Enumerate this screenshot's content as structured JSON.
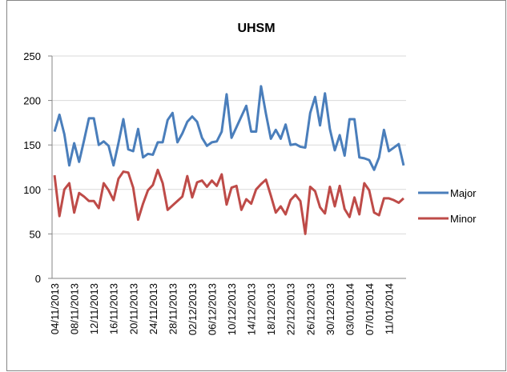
{
  "chart_data": {
    "type": "line",
    "title": "UHSM",
    "categories": [
      "04/11/2013",
      null,
      null,
      null,
      "08/11/2013",
      null,
      null,
      null,
      "12/11/2013",
      null,
      null,
      null,
      "16/11/2013",
      null,
      null,
      null,
      "20/11/2013",
      null,
      null,
      null,
      "24/11/2013",
      null,
      null,
      null,
      "28/11/2013",
      null,
      null,
      null,
      "02/12/2013",
      null,
      null,
      null,
      "06/12/2013",
      null,
      null,
      null,
      "10/12/2013",
      null,
      null,
      null,
      "14/12/2013",
      null,
      null,
      null,
      "18/12/2013",
      null,
      null,
      null,
      "22/12/2013",
      null,
      null,
      null,
      "26/12/2013",
      null,
      null,
      null,
      "30/12/2013",
      null,
      null,
      null,
      "03/01/2014",
      null,
      null,
      null,
      "07/01/2014",
      null,
      null,
      null,
      "11/01/2014",
      null,
      null,
      null
    ],
    "series": [
      {
        "name": "Major",
        "color": "#4a7ebb",
        "values": [
          165,
          184,
          162,
          127,
          152,
          131,
          155,
          180,
          180,
          150,
          154,
          149,
          127,
          152,
          179,
          145,
          143,
          168,
          136,
          140,
          139,
          153,
          153,
          178,
          186,
          153,
          163,
          176,
          182,
          176,
          158,
          149,
          153,
          154,
          165,
          207,
          158,
          170,
          182,
          194,
          165,
          165,
          216,
          185,
          157,
          167,
          157,
          173,
          150,
          151,
          148,
          147,
          186,
          204,
          172,
          208,
          168,
          144,
          161,
          138,
          179,
          179,
          136,
          135,
          133,
          122,
          136,
          167,
          143,
          147,
          151,
          127
        ]
      },
      {
        "name": "Minor",
        "color": "#be4b48",
        "values": [
          116,
          70,
          100,
          107,
          74,
          96,
          92,
          87,
          87,
          79,
          107,
          99,
          88,
          112,
          120,
          119,
          102,
          66,
          84,
          99,
          105,
          122,
          107,
          77,
          82,
          87,
          92,
          115,
          91,
          108,
          110,
          103,
          110,
          104,
          117,
          83,
          102,
          104,
          77,
          89,
          84,
          100,
          106,
          111,
          93,
          74,
          81,
          72,
          88,
          94,
          87,
          50,
          103,
          98,
          80,
          73,
          103,
          81,
          104,
          78,
          69,
          91,
          72,
          107,
          99,
          74,
          71,
          90,
          90,
          88,
          85,
          90
        ]
      }
    ],
    "ylim": [
      0,
      250
    ],
    "yticks": [
      0,
      50,
      100,
      150,
      200,
      250
    ],
    "grid": true,
    "legend": "right"
  }
}
